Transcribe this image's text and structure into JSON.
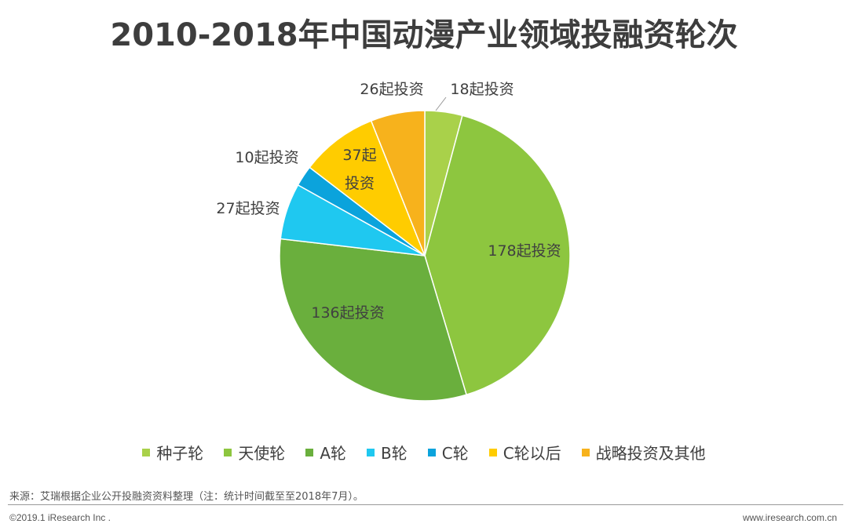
{
  "title": "2010-2018年中国动漫产业领域投融资轮次",
  "chart_data": {
    "type": "pie",
    "title": "2010-2018年中国动漫产业领域投融资轮次",
    "unit": "起投资",
    "start_angle_deg": 0,
    "direction": "clockwise",
    "slices": [
      {
        "name": "种子轮",
        "value": 18,
        "label": "18起投资",
        "color": "#a9d14a"
      },
      {
        "name": "天使轮",
        "value": 178,
        "label": "178起投资",
        "color": "#8dc63f"
      },
      {
        "name": "A轮",
        "value": 136,
        "label": "136起投资",
        "color": "#6aaf3d"
      },
      {
        "name": "B轮",
        "value": 27,
        "label": "27起投资",
        "color": "#1fc8f0"
      },
      {
        "name": "C轮",
        "value": 10,
        "label": "10起投资",
        "color": "#0ba3dc"
      },
      {
        "name": "C轮以后",
        "value": 37,
        "label": "37起投资",
        "color": "#ffcc00"
      },
      {
        "name": "战略投资及其他",
        "value": 26,
        "label": "26起投资",
        "color": "#f7b21c"
      }
    ],
    "legend_position": "bottom"
  },
  "legend": {
    "items": [
      "种子轮",
      "天使轮",
      "A轮",
      "B轮",
      "C轮",
      "C轮以后",
      "战略投资及其他"
    ]
  },
  "footer": {
    "source": "来源：艾瑞根据企业公开投融资资料整理（注：统计时间截至至2018年7月）。",
    "copyright": "©2019.1 iResearch Inc .",
    "website": "www.iresearch.com.cn"
  }
}
